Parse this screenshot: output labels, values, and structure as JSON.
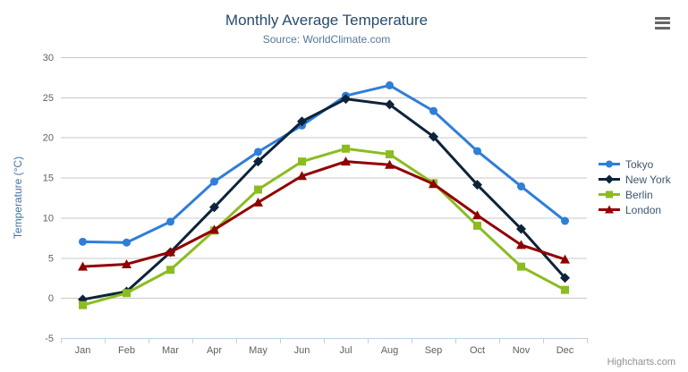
{
  "header": {
    "title": "Monthly Average Temperature",
    "subtitle": "Source: WorldClimate.com"
  },
  "toolbar": {
    "menu_icon": "hamburger-menu"
  },
  "credits": {
    "label": "Highcharts.com"
  },
  "chart_data": {
    "type": "line",
    "title": "Monthly Average Temperature",
    "subtitle": "Source: WorldClimate.com",
    "categories": [
      "Jan",
      "Feb",
      "Mar",
      "Apr",
      "May",
      "Jun",
      "Jul",
      "Aug",
      "Sep",
      "Oct",
      "Nov",
      "Dec"
    ],
    "xlabel": "",
    "ylabel": "Temperature (°C)",
    "ylim": [
      -5,
      30
    ],
    "ytick_interval": 5,
    "grid": true,
    "legend_position": "right",
    "series": [
      {
        "name": "Tokyo",
        "color": "#2f7ed8",
        "marker": "circle",
        "values": [
          7.0,
          6.9,
          9.5,
          14.5,
          18.2,
          21.5,
          25.2,
          26.5,
          23.3,
          18.3,
          13.9,
          9.6
        ]
      },
      {
        "name": "New York",
        "color": "#0d233a",
        "marker": "diamond",
        "values": [
          -0.2,
          0.8,
          5.7,
          11.3,
          17.0,
          22.0,
          24.8,
          24.1,
          20.1,
          14.1,
          8.6,
          2.5
        ]
      },
      {
        "name": "Berlin",
        "color": "#8bbc21",
        "marker": "square",
        "values": [
          -0.9,
          0.6,
          3.5,
          8.4,
          13.5,
          17.0,
          18.6,
          17.9,
          14.3,
          9.0,
          3.9,
          1.0
        ]
      },
      {
        "name": "London",
        "color": "#910000",
        "marker": "triangle",
        "values": [
          3.9,
          4.2,
          5.7,
          8.5,
          11.9,
          15.2,
          17.0,
          16.6,
          14.2,
          10.3,
          6.6,
          4.8
        ]
      }
    ]
  },
  "theme": {
    "title_color": "#274b6d",
    "subtitle_color": "#55779a",
    "axis_label_color": "#606060",
    "axis_title_color": "#4572a7",
    "grid_color": "#c8c8c8",
    "axis_line_color": "#c0d0e0",
    "legend_text_color": "#3e576f",
    "credits_color": "#909090",
    "menu_icon_color": "#666666"
  }
}
